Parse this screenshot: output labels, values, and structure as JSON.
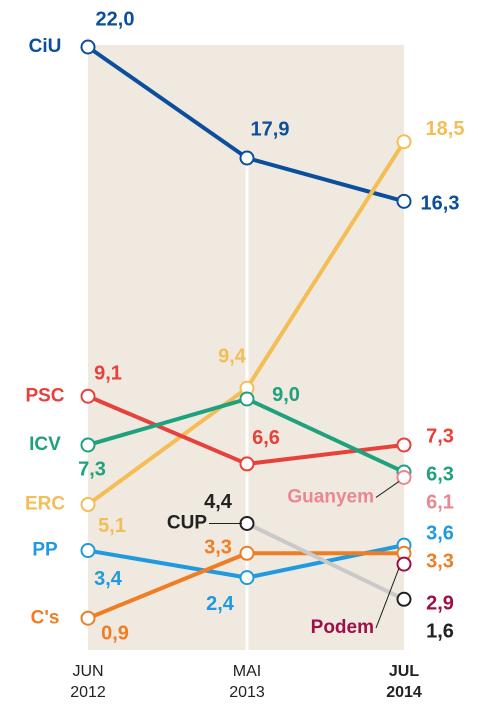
{
  "chart_data": {
    "type": "line",
    "categories": [
      [
        "JUN",
        "2012"
      ],
      [
        "MAI",
        "2013"
      ],
      [
        "JUL",
        "2014"
      ]
    ],
    "ylim": [
      0,
      22
    ],
    "series": [
      {
        "name": "CiU",
        "color": "#0b4f9c",
        "values": [
          22.0,
          17.9,
          16.3
        ],
        "value_labels": [
          "22,0",
          "17,9",
          "16,3"
        ]
      },
      {
        "name": "ERC",
        "color": "#f5bd55",
        "values": [
          5.1,
          9.4,
          18.5
        ],
        "value_labels": [
          "5,1",
          "9,4",
          "18,5"
        ]
      },
      {
        "name": "PSC",
        "color": "#e8403a",
        "values": [
          9.1,
          6.6,
          7.3
        ],
        "value_labels": [
          "9,1",
          "6,6",
          "7,3"
        ]
      },
      {
        "name": "ICV",
        "color": "#1fa17e",
        "values": [
          7.3,
          9.0,
          6.3
        ],
        "value_labels": [
          "7,3",
          "9,0",
          "6,3"
        ]
      },
      {
        "name": "PP",
        "color": "#1f9ade",
        "values": [
          3.4,
          2.4,
          3.6
        ],
        "value_labels": [
          "3,4",
          "2,4",
          "3,6"
        ]
      },
      {
        "name": "C's",
        "color": "#f07d23",
        "values": [
          0.9,
          3.3,
          3.3
        ],
        "value_labels": [
          "0,9",
          "3,3",
          "3,3"
        ]
      },
      {
        "name": "CUP",
        "color": "#c9c9c9",
        "label_color": "#222222",
        "values": [
          null,
          4.4,
          1.6
        ],
        "value_labels": [
          null,
          "4,4",
          "1,6"
        ]
      },
      {
        "name": "Guanyem",
        "color": "#ea8790",
        "values": [
          null,
          null,
          6.1
        ],
        "value_labels": [
          null,
          null,
          "6,1"
        ]
      },
      {
        "name": "Podem",
        "color": "#9e0f4a",
        "values": [
          null,
          null,
          2.9
        ],
        "value_labels": [
          null,
          null,
          "2,9"
        ]
      }
    ]
  }
}
